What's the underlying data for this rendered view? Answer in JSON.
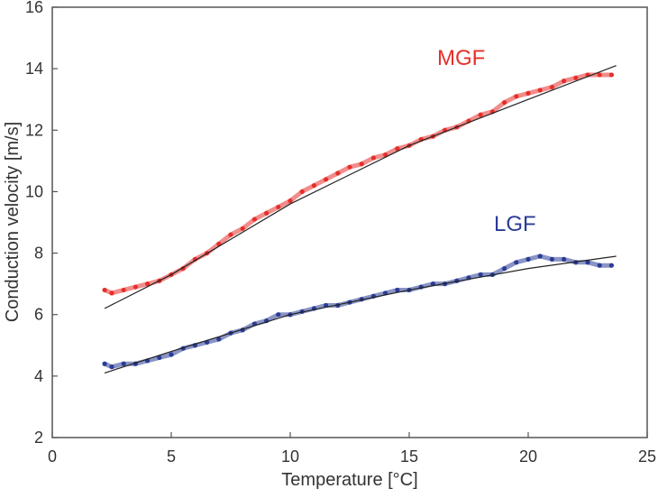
{
  "chart_data": {
    "type": "scatter",
    "xlabel": "Temperature [°C]",
    "ylabel": "Conduction velocity [m/s]",
    "xlim": [
      0,
      25
    ],
    "ylim": [
      2,
      16
    ],
    "xticks": [
      "0",
      "5",
      "10",
      "15",
      "20",
      "25"
    ],
    "yticks": [
      "2",
      "4",
      "6",
      "8",
      "10",
      "12",
      "14",
      "16"
    ],
    "grid": false,
    "series": [
      {
        "name": "MGF",
        "color": "#e5302b",
        "x": [
          2.2,
          2.5,
          3,
          3.5,
          4,
          4.5,
          5,
          5.5,
          6,
          6.5,
          7,
          7.5,
          8,
          8.5,
          9,
          9.5,
          10,
          10.5,
          11,
          11.5,
          12,
          12.5,
          13,
          13.5,
          14,
          14.5,
          15,
          15.5,
          16,
          16.5,
          17,
          17.5,
          18,
          18.5,
          19,
          19.5,
          20,
          20.5,
          21,
          21.5,
          22,
          22.5,
          23,
          23.5
        ],
        "y": [
          6.8,
          6.7,
          6.8,
          6.9,
          7.0,
          7.1,
          7.3,
          7.5,
          7.8,
          8.0,
          8.3,
          8.6,
          8.8,
          9.1,
          9.3,
          9.5,
          9.7,
          10.0,
          10.2,
          10.4,
          10.6,
          10.8,
          10.9,
          11.1,
          11.2,
          11.4,
          11.5,
          11.7,
          11.8,
          12.0,
          12.1,
          12.3,
          12.5,
          12.6,
          12.9,
          13.1,
          13.2,
          13.3,
          13.4,
          13.6,
          13.7,
          13.8,
          13.8,
          13.8
        ],
        "fit": {
          "x": [
            2.2,
            5,
            10,
            15,
            20,
            23.7
          ],
          "y": [
            6.2,
            7.3,
            9.6,
            11.5,
            13.0,
            14.1
          ]
        }
      },
      {
        "name": "LGF",
        "color": "#2a3c96",
        "x": [
          2.2,
          2.5,
          3,
          3.5,
          4,
          4.5,
          5,
          5.5,
          6,
          6.5,
          7,
          7.5,
          8,
          8.5,
          9,
          9.5,
          10,
          10.5,
          11,
          11.5,
          12,
          12.5,
          13,
          13.5,
          14,
          14.5,
          15,
          15.5,
          16,
          16.5,
          17,
          17.5,
          18,
          18.5,
          19,
          19.5,
          20,
          20.5,
          21,
          21.5,
          22,
          22.5,
          23,
          23.5
        ],
        "y": [
          4.4,
          4.3,
          4.4,
          4.4,
          4.5,
          4.6,
          4.7,
          4.9,
          5.0,
          5.1,
          5.2,
          5.4,
          5.5,
          5.7,
          5.8,
          6.0,
          6.0,
          6.1,
          6.2,
          6.3,
          6.3,
          6.4,
          6.5,
          6.6,
          6.7,
          6.8,
          6.8,
          6.9,
          7.0,
          7.0,
          7.1,
          7.2,
          7.3,
          7.3,
          7.5,
          7.7,
          7.8,
          7.9,
          7.8,
          7.8,
          7.7,
          7.7,
          7.6,
          7.6
        ],
        "fit": {
          "x": [
            2.2,
            5,
            10,
            15,
            20,
            23.7
          ],
          "y": [
            4.1,
            4.8,
            6.0,
            6.8,
            7.5,
            7.9
          ]
        }
      }
    ]
  }
}
